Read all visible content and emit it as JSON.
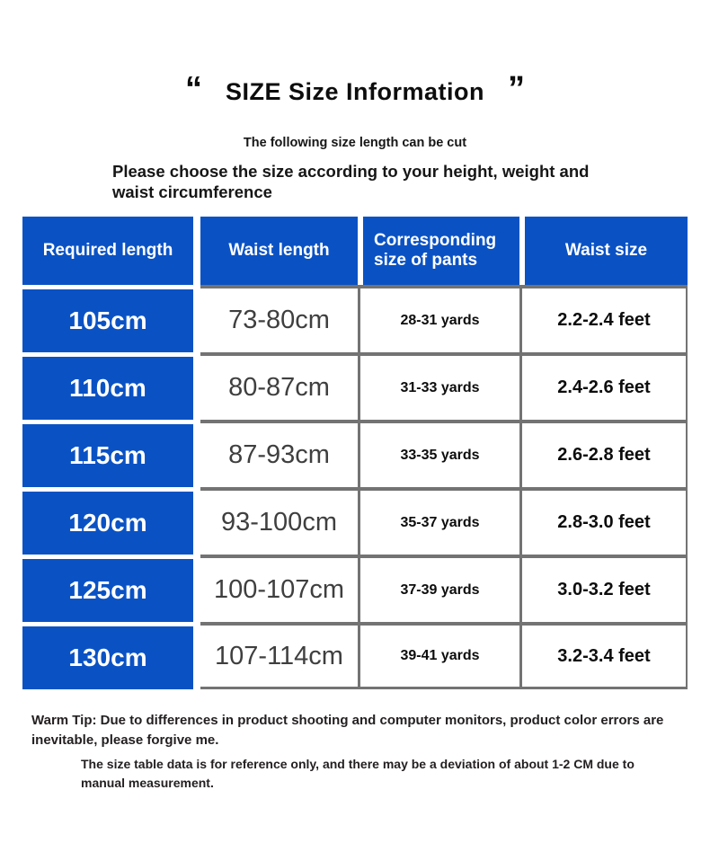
{
  "title": {
    "quote_open": "“",
    "text": "SIZE Size Information",
    "quote_close": "”"
  },
  "subtitle": "The following size length can be cut",
  "intro": "Please choose the size according to your height, weight and waist circumference",
  "table": {
    "headers": [
      "Required length",
      "Waist length",
      "Corresponding size of pants",
      "Waist size"
    ],
    "rows": [
      [
        "105cm",
        "73-80cm",
        "28-31 yards",
        "2.2-2.4 feet"
      ],
      [
        "110cm",
        "80-87cm",
        "31-33 yards",
        "2.4-2.6 feet"
      ],
      [
        "115cm",
        "87-93cm",
        "33-35 yards",
        "2.6-2.8 feet"
      ],
      [
        "120cm",
        "93-100cm",
        "35-37 yards",
        "2.8-3.0 feet"
      ],
      [
        "125cm",
        "100-107cm",
        "37-39 yards",
        "3.0-3.2 feet"
      ],
      [
        "130cm",
        "107-114cm",
        "39-41 yards",
        "3.2-3.4 feet"
      ]
    ]
  },
  "notes": {
    "warm_tip": "Warm Tip: Due to differences in product shooting and computer monitors, product color errors are inevitable, please forgive me.",
    "measurement_note": "The size table data is for reference only, and there may be a deviation of about 1-2 CM due to manual measurement."
  },
  "colors": {
    "accent_blue": "#0A52C4",
    "grid_gray": "#737373",
    "text_black": "#0d0d0d"
  }
}
